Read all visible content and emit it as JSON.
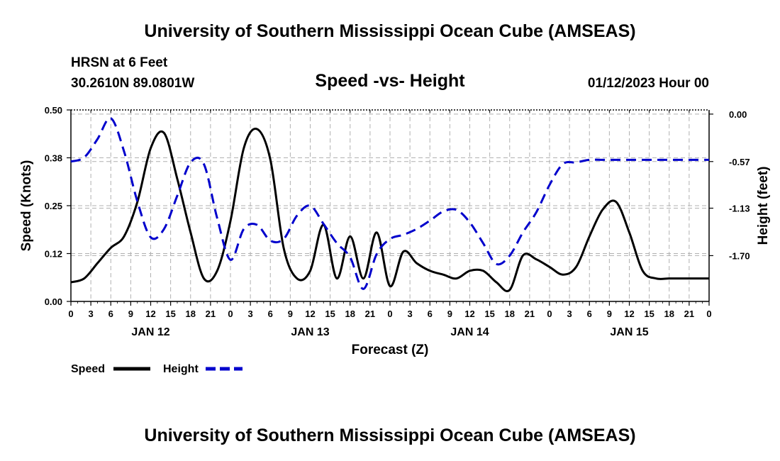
{
  "header": {
    "title": "University of Southern Mississippi Ocean Cube (AMSEAS)",
    "station": "HRSN at 6 Feet",
    "coords": "30.2610N  89.0801W",
    "chart_title": "Speed -vs- Height",
    "datetime": "01/12/2023 Hour 00"
  },
  "footer": {
    "title": "University of Southern Mississippi Ocean Cube (AMSEAS)"
  },
  "colors": {
    "speed": "#000000",
    "height": "#0000cc",
    "grid": "#b0b0b0"
  },
  "chart_data": {
    "type": "line",
    "title": "Speed -vs- Height",
    "xlabel": "Forecast (Z)",
    "ylabel": "Speed (Knots)",
    "y2label": "Height (feet)",
    "x_range_hours": [
      0,
      96
    ],
    "x_tick_hours": [
      0,
      3,
      6,
      9,
      12,
      15,
      18,
      21,
      24,
      27,
      30,
      33,
      36,
      39,
      42,
      45,
      48,
      51,
      54,
      57,
      60,
      63,
      66,
      69,
      72,
      75,
      78,
      81,
      84,
      87,
      90,
      93,
      96
    ],
    "x_tick_labels": [
      "0",
      "3",
      "6",
      "9",
      "12",
      "15",
      "18",
      "21",
      "0",
      "3",
      "6",
      "9",
      "12",
      "15",
      "18",
      "21",
      "0",
      "3",
      "6",
      "9",
      "12",
      "15",
      "18",
      "21",
      "0",
      "3",
      "6",
      "9",
      "12",
      "15",
      "18",
      "21",
      "0"
    ],
    "day_labels": [
      {
        "hour": 12,
        "label": "JAN 12"
      },
      {
        "hour": 36,
        "label": "JAN 13"
      },
      {
        "hour": 60,
        "label": "JAN 14"
      },
      {
        "hour": 84,
        "label": "JAN 15"
      }
    ],
    "ylim": [
      0,
      0.5
    ],
    "y_ticks": [
      0,
      0.125,
      0.25,
      0.375,
      0.5
    ],
    "y_tick_labels": [
      "0.00",
      "0.12",
      "0.25",
      "0.38",
      "0.50"
    ],
    "y2lim": [
      -2.25,
      0.05
    ],
    "y2_ticks": [
      0,
      -0.57,
      -1.13,
      -1.7
    ],
    "y2_tick_labels": [
      "0.00",
      "-0.57",
      "-1.13",
      "-1.70"
    ],
    "legend": [
      {
        "name": "Speed",
        "style": "solid"
      },
      {
        "name": "Height",
        "style": "dashed"
      }
    ],
    "series": [
      {
        "name": "Speed",
        "axis": "left",
        "style": "solid",
        "x": [
          0,
          2,
          4,
          6,
          8,
          10,
          12,
          14,
          16,
          18,
          20,
          22,
          24,
          26,
          28,
          30,
          32,
          34,
          36,
          38,
          40,
          42,
          44,
          46,
          48,
          50,
          52,
          54,
          56,
          58,
          60,
          62,
          64,
          66,
          68,
          70,
          72,
          74,
          76,
          78,
          80,
          82,
          84,
          86,
          88,
          90,
          92,
          94,
          96
        ],
        "values": [
          0.05,
          0.06,
          0.1,
          0.14,
          0.17,
          0.26,
          0.4,
          0.44,
          0.32,
          0.18,
          0.06,
          0.08,
          0.21,
          0.4,
          0.45,
          0.37,
          0.14,
          0.06,
          0.08,
          0.2,
          0.06,
          0.17,
          0.06,
          0.18,
          0.04,
          0.13,
          0.1,
          0.08,
          0.07,
          0.06,
          0.08,
          0.08,
          0.05,
          0.03,
          0.12,
          0.11,
          0.09,
          0.07,
          0.09,
          0.17,
          0.24,
          0.26,
          0.18,
          0.08,
          0.06,
          0.06,
          0.06,
          0.06,
          0.06
        ]
      },
      {
        "name": "Height",
        "axis": "right",
        "style": "dashed",
        "x": [
          0,
          2,
          4,
          6,
          8,
          10,
          12,
          14,
          16,
          18,
          20,
          22,
          24,
          26,
          28,
          30,
          32,
          34,
          36,
          38,
          40,
          42,
          44,
          46,
          48,
          50,
          52,
          54,
          56,
          58,
          60,
          62,
          64,
          66,
          68,
          70,
          72,
          74,
          76,
          78,
          80,
          82,
          84,
          86,
          88,
          90,
          92,
          94,
          96
        ],
        "values": [
          -0.57,
          -0.52,
          -0.3,
          -0.05,
          -0.45,
          -1.05,
          -1.48,
          -1.38,
          -0.98,
          -0.58,
          -0.6,
          -1.25,
          -1.75,
          -1.38,
          -1.33,
          -1.52,
          -1.5,
          -1.22,
          -1.1,
          -1.32,
          -1.55,
          -1.72,
          -2.1,
          -1.68,
          -1.5,
          -1.45,
          -1.38,
          -1.28,
          -1.17,
          -1.15,
          -1.3,
          -1.55,
          -1.8,
          -1.7,
          -1.42,
          -1.18,
          -0.85,
          -0.6,
          -0.58,
          -0.55,
          -0.55,
          -0.55,
          -0.55,
          -0.55,
          -0.55,
          -0.55,
          -0.55,
          -0.55,
          -0.55
        ]
      }
    ]
  }
}
